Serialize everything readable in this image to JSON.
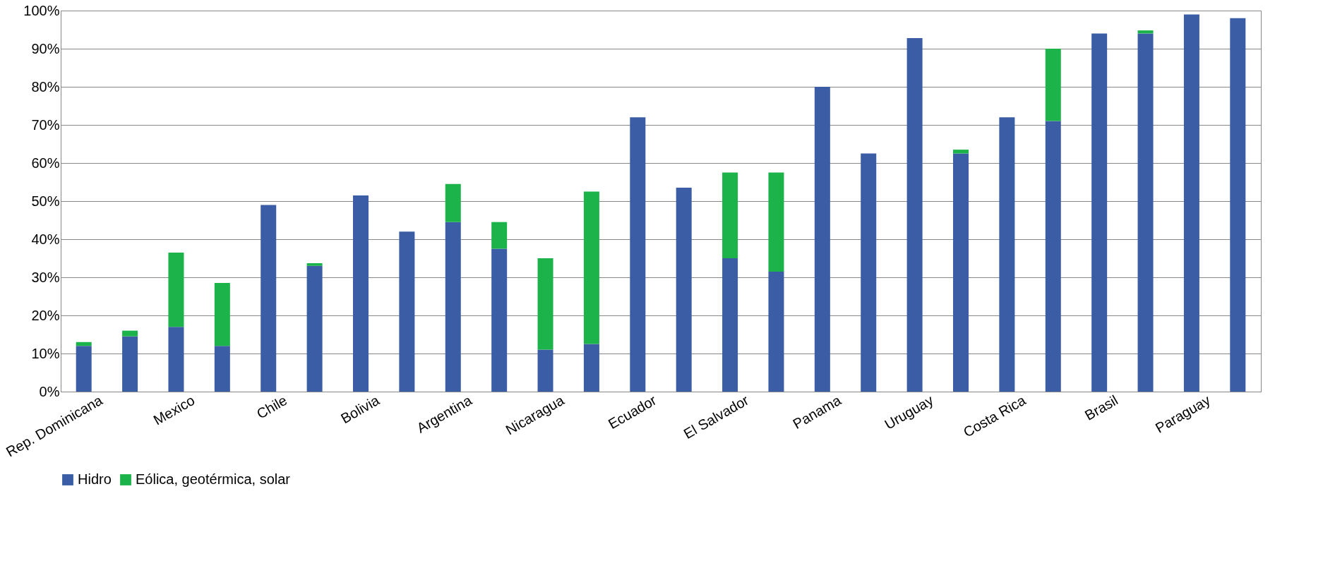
{
  "chart_data": {
    "type": "bar",
    "stacked": true,
    "categories": [
      "Rep. Dominicana",
      null,
      "Mexico",
      null,
      "Chile",
      null,
      "Bolivia",
      null,
      "Argentina",
      null,
      "Nicaragua",
      null,
      "Ecuador",
      null,
      "El Salvador",
      null,
      "Panama",
      null,
      "Uruguay",
      null,
      "Costa Rica",
      null,
      "Brasil",
      null,
      "Paraguay",
      null
    ],
    "series": [
      {
        "name": "Hidro",
        "color": "#3a5da5",
        "values": [
          12,
          14.5,
          17,
          12,
          49,
          33,
          51.5,
          42,
          44.5,
          37.5,
          11,
          12.5,
          72,
          53.5,
          35,
          31.5,
          80,
          62.5,
          92.8,
          62.5,
          72,
          71,
          94,
          94,
          99,
          98
        ]
      },
      {
        "name": "Eólica, geotérmica, solar",
        "color": "#1db34b",
        "values": [
          1,
          1.5,
          19.5,
          16.5,
          0,
          0.7,
          0,
          0,
          10,
          7,
          24,
          40,
          0,
          0,
          22.5,
          26,
          0,
          0,
          0,
          1,
          0,
          19,
          0,
          0.8,
          0,
          0
        ]
      }
    ],
    "ylim": [
      0,
      100
    ],
    "yticks": [
      {
        "value": 0,
        "label": "0%"
      },
      {
        "value": 10,
        "label": "10%"
      },
      {
        "value": 20,
        "label": "20%"
      },
      {
        "value": 30,
        "label": "30%"
      },
      {
        "value": 40,
        "label": "40%"
      },
      {
        "value": 50,
        "label": "50%"
      },
      {
        "value": 60,
        "label": "60%"
      },
      {
        "value": 70,
        "label": "70%"
      },
      {
        "value": 80,
        "label": "80%"
      },
      {
        "value": 90,
        "label": "90%"
      },
      {
        "value": 100,
        "label": "100%"
      }
    ],
    "grid": "y",
    "legend": "bottom"
  }
}
